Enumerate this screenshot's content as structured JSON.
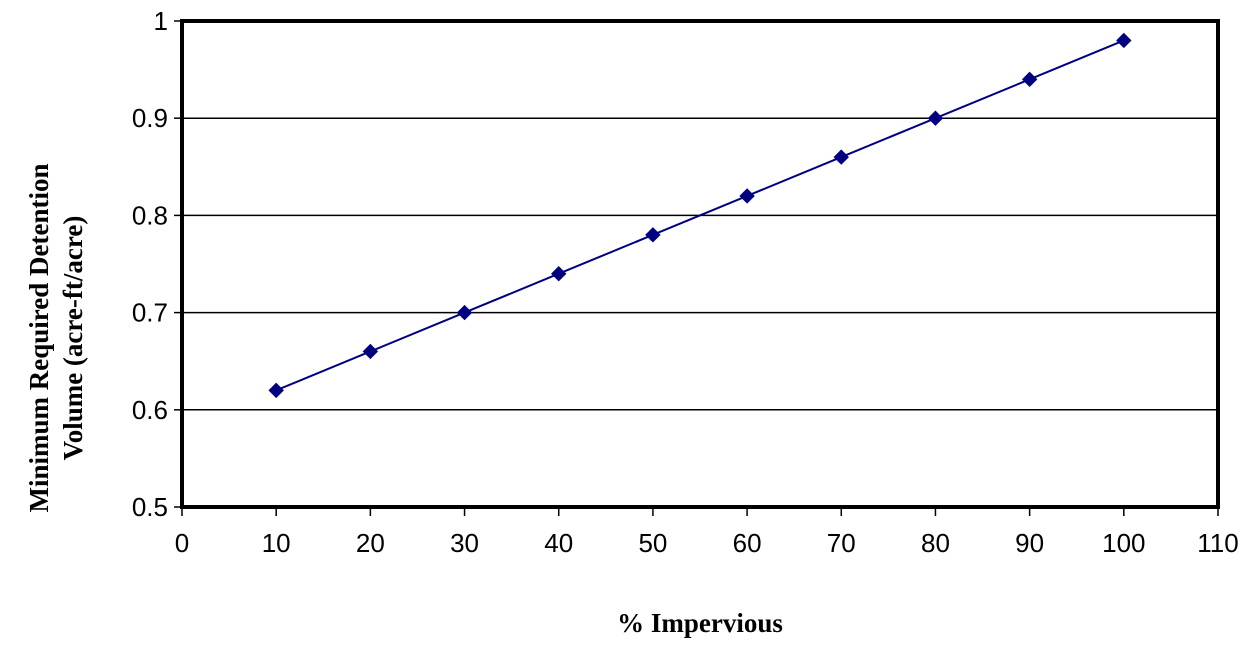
{
  "chart_data": {
    "type": "line",
    "title": "",
    "xlabel": "% Impervious",
    "ylabel_lines": [
      "Minimum Required Detention",
      "Volume (acre-ft/acre)"
    ],
    "xlim": [
      0,
      110
    ],
    "ylim": [
      0.5,
      1
    ],
    "x_ticks": [
      0,
      10,
      20,
      30,
      40,
      50,
      60,
      70,
      80,
      90,
      100,
      110
    ],
    "x_tick_labels": [
      "0",
      "10",
      "20",
      "30",
      "40",
      "50",
      "60",
      "70",
      "80",
      "90",
      "100",
      "110"
    ],
    "y_ticks": [
      0.5,
      0.6,
      0.7,
      0.8,
      0.9,
      1
    ],
    "y_tick_labels": [
      "0.5",
      "0.6",
      "0.7",
      "0.8",
      "0.9",
      "1"
    ],
    "grid": "horizontal",
    "legend": "none",
    "marker": "diamond",
    "series": [
      {
        "color": "#000080",
        "x": [
          10,
          20,
          30,
          40,
          50,
          60,
          70,
          80,
          90,
          100
        ],
        "y": [
          0.62,
          0.66,
          0.7,
          0.74,
          0.78,
          0.82,
          0.86,
          0.9,
          0.94,
          0.98
        ]
      }
    ]
  }
}
